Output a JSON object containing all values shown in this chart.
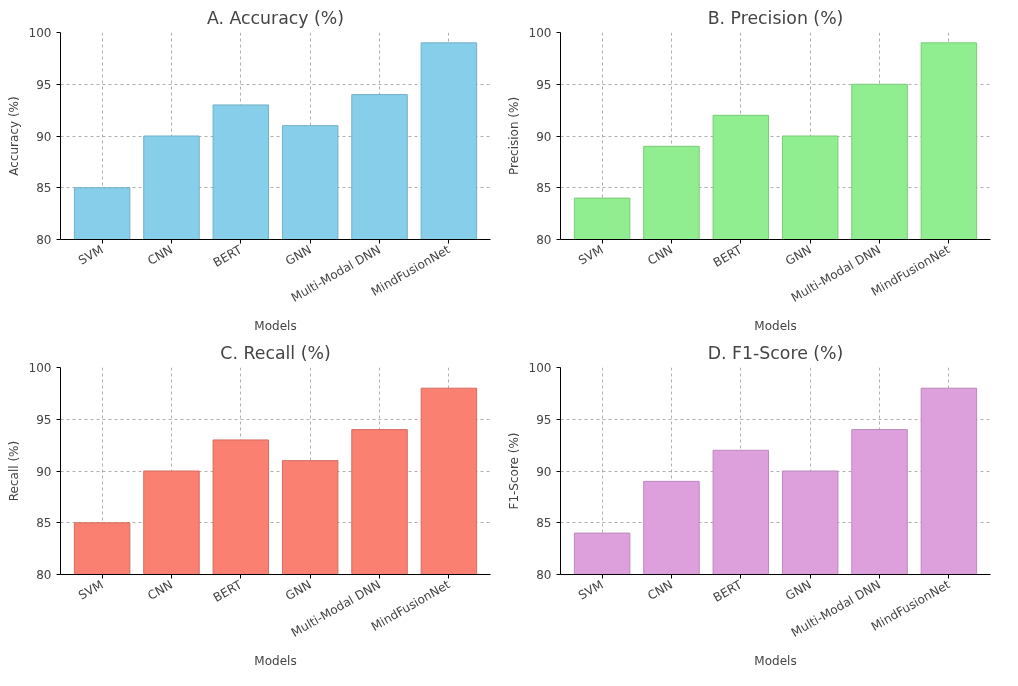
{
  "chart_data": [
    {
      "type": "bar",
      "title": "A. Accuracy (%)",
      "xlabel": "Models",
      "ylabel": "Accuracy (%)",
      "categories": [
        "SVM",
        "CNN",
        "BERT",
        "GNN",
        "Multi-Modal DNN",
        "MindFusionNet"
      ],
      "values": [
        85,
        90,
        93,
        91,
        94,
        99
      ],
      "color": "#87ceeb",
      "ylim": [
        80,
        100
      ],
      "yticks": [
        80,
        85,
        90,
        95,
        100
      ],
      "grid": true
    },
    {
      "type": "bar",
      "title": "B. Precision (%)",
      "xlabel": "Models",
      "ylabel": "Precision (%)",
      "categories": [
        "SVM",
        "CNN",
        "BERT",
        "GNN",
        "Multi-Modal DNN",
        "MindFusionNet"
      ],
      "values": [
        84,
        89,
        92,
        90,
        95,
        99
      ],
      "color": "#90ee90",
      "ylim": [
        80,
        100
      ],
      "yticks": [
        80,
        85,
        90,
        95,
        100
      ],
      "grid": true
    },
    {
      "type": "bar",
      "title": "C. Recall (%)",
      "xlabel": "Models",
      "ylabel": "Recall (%)",
      "categories": [
        "SVM",
        "CNN",
        "BERT",
        "GNN",
        "Multi-Modal DNN",
        "MindFusionNet"
      ],
      "values": [
        85,
        90,
        93,
        91,
        94,
        98
      ],
      "color": "#fa8072",
      "ylim": [
        80,
        100
      ],
      "yticks": [
        80,
        85,
        90,
        95,
        100
      ],
      "grid": true
    },
    {
      "type": "bar",
      "title": "D. F1-Score (%)",
      "xlabel": "Models",
      "ylabel": "F1-Score (%)",
      "categories": [
        "SVM",
        "CNN",
        "BERT",
        "GNN",
        "Multi-Modal DNN",
        "MindFusionNet"
      ],
      "values": [
        84,
        89,
        92,
        90,
        94,
        98
      ],
      "color": "#dda0dd",
      "ylim": [
        80,
        100
      ],
      "yticks": [
        80,
        85,
        90,
        95,
        100
      ],
      "grid": true
    }
  ]
}
